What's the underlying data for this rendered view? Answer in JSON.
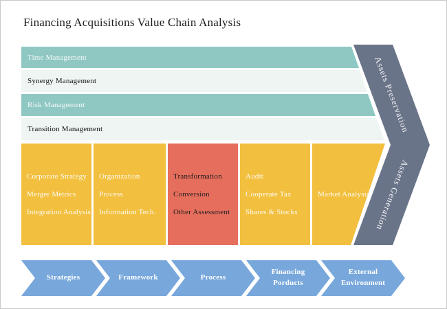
{
  "title": "Financing Acquisitions Value Chain Analysis",
  "support_rows": [
    {
      "label": "Time Management",
      "style": "teal"
    },
    {
      "label": "Synergy Management",
      "style": "light"
    },
    {
      "label": "Risk Management",
      "style": "teal"
    },
    {
      "label": "Transition Management",
      "style": "light"
    }
  ],
  "activity_columns": [
    {
      "style": "yellow",
      "items": [
        "Corporate Strategy",
        "Merger Metrics",
        "Integration Analysis"
      ]
    },
    {
      "style": "yellow",
      "items": [
        "Organization",
        "Process",
        "Information Tech."
      ]
    },
    {
      "style": "red",
      "items": [
        "Transformation",
        "Conversion",
        "Other Assessment"
      ]
    },
    {
      "style": "yellow",
      "items": [
        "Audit",
        "Cooperate Tax",
        "Shares & Stocks"
      ]
    },
    {
      "style": "yellow",
      "items": [
        "Market Analysis"
      ]
    }
  ],
  "assets_arrow": {
    "top_label": "Assets Preservation",
    "bottom_label": "Assets Generation"
  },
  "process_arrows": [
    {
      "label": "Strategies"
    },
    {
      "label": "Framework"
    },
    {
      "label": "Process"
    },
    {
      "label": "Financing Porducts"
    },
    {
      "label": "External Environment"
    }
  ],
  "colors": {
    "teal_bar": "#8fc7c3",
    "light_bar": "#eef5f2",
    "yellow_box": "#f2bf3e",
    "red_box": "#e66e5d",
    "assets_arrow": "#6a7489",
    "process_arrow": "#77a7db",
    "title_text": "#1c1c1c"
  }
}
